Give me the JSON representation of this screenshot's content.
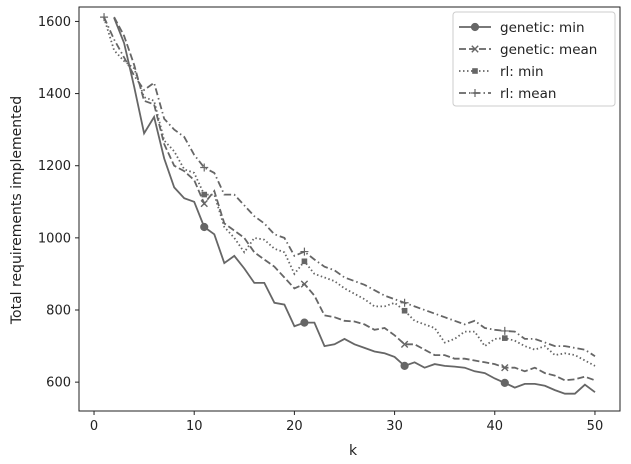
{
  "chart_data": {
    "type": "line",
    "title": "",
    "xlabel": "k",
    "ylabel": "Total requirements implemented",
    "xlim": [
      -1.5,
      52.5
    ],
    "ylim": [
      520,
      1640
    ],
    "xticks": [
      0,
      10,
      20,
      30,
      40,
      50
    ],
    "yticks": [
      600,
      800,
      1000,
      1200,
      1400,
      1600
    ],
    "grid": false,
    "legend_position": "top-right",
    "series": [
      {
        "name": "genetic: min",
        "color": "#666666",
        "dash": "solid",
        "marker": "circle",
        "marker_every": [
          11,
          21,
          31,
          41
        ],
        "points": [
          [
            2,
            1610
          ],
          [
            3,
            1540
          ],
          [
            4,
            1420
          ],
          [
            5,
            1290
          ],
          [
            6,
            1335
          ],
          [
            7,
            1220
          ],
          [
            8,
            1140
          ],
          [
            9,
            1110
          ],
          [
            10,
            1100
          ],
          [
            11,
            1030
          ],
          [
            12,
            1010
          ],
          [
            13,
            930
          ],
          [
            14,
            950
          ],
          [
            15,
            915
          ],
          [
            16,
            875
          ],
          [
            17,
            875
          ],
          [
            18,
            820
          ],
          [
            19,
            815
          ],
          [
            20,
            755
          ],
          [
            21,
            765
          ],
          [
            22,
            765
          ],
          [
            23,
            700
          ],
          [
            24,
            705
          ],
          [
            25,
            720
          ],
          [
            26,
            705
          ],
          [
            27,
            695
          ],
          [
            28,
            685
          ],
          [
            29,
            680
          ],
          [
            30,
            670
          ],
          [
            31,
            645
          ],
          [
            32,
            655
          ],
          [
            33,
            640
          ],
          [
            34,
            650
          ],
          [
            35,
            645
          ],
          [
            36,
            643
          ],
          [
            37,
            640
          ],
          [
            38,
            630
          ],
          [
            39,
            625
          ],
          [
            40,
            610
          ],
          [
            41,
            598
          ],
          [
            42,
            585
          ],
          [
            43,
            595
          ],
          [
            44,
            595
          ],
          [
            45,
            590
          ],
          [
            46,
            578
          ],
          [
            47,
            568
          ],
          [
            48,
            568
          ],
          [
            49,
            593
          ],
          [
            50,
            572
          ]
        ]
      },
      {
        "name": "genetic: mean",
        "color": "#666666",
        "dash": "dashed",
        "marker": "x",
        "marker_every": [
          11,
          21,
          31,
          41
        ],
        "points": [
          [
            2,
            1612
          ],
          [
            3,
            1560
          ],
          [
            4,
            1480
          ],
          [
            5,
            1380
          ],
          [
            6,
            1370
          ],
          [
            7,
            1260
          ],
          [
            8,
            1200
          ],
          [
            9,
            1185
          ],
          [
            10,
            1160
          ],
          [
            11,
            1095
          ],
          [
            12,
            1130
          ],
          [
            13,
            1040
          ],
          [
            14,
            1020
          ],
          [
            15,
            1000
          ],
          [
            16,
            960
          ],
          [
            17,
            940
          ],
          [
            18,
            920
          ],
          [
            19,
            890
          ],
          [
            20,
            860
          ],
          [
            21,
            872
          ],
          [
            22,
            840
          ],
          [
            23,
            785
          ],
          [
            24,
            780
          ],
          [
            25,
            770
          ],
          [
            26,
            768
          ],
          [
            27,
            760
          ],
          [
            28,
            745
          ],
          [
            29,
            750
          ],
          [
            30,
            730
          ],
          [
            31,
            705
          ],
          [
            32,
            705
          ],
          [
            33,
            690
          ],
          [
            34,
            675
          ],
          [
            35,
            675
          ],
          [
            36,
            665
          ],
          [
            37,
            665
          ],
          [
            38,
            660
          ],
          [
            39,
            655
          ],
          [
            40,
            650
          ],
          [
            41,
            640
          ],
          [
            42,
            640
          ],
          [
            43,
            630
          ],
          [
            44,
            640
          ],
          [
            45,
            625
          ],
          [
            46,
            618
          ],
          [
            47,
            605
          ],
          [
            48,
            608
          ],
          [
            49,
            615
          ],
          [
            50,
            605
          ]
        ]
      },
      {
        "name": "rl: min",
        "color": "#666666",
        "dash": "dotted",
        "marker": "square",
        "marker_every": [
          11,
          21,
          31,
          41
        ],
        "points": [
          [
            1,
            1610
          ],
          [
            2,
            1520
          ],
          [
            3,
            1490
          ],
          [
            4,
            1470
          ],
          [
            5,
            1390
          ],
          [
            6,
            1380
          ],
          [
            7,
            1270
          ],
          [
            8,
            1240
          ],
          [
            9,
            1190
          ],
          [
            10,
            1180
          ],
          [
            11,
            1120
          ],
          [
            12,
            1120
          ],
          [
            13,
            1030
          ],
          [
            14,
            1000
          ],
          [
            15,
            960
          ],
          [
            16,
            1000
          ],
          [
            17,
            995
          ],
          [
            18,
            970
          ],
          [
            19,
            960
          ],
          [
            20,
            900
          ],
          [
            21,
            935
          ],
          [
            22,
            900
          ],
          [
            23,
            890
          ],
          [
            24,
            880
          ],
          [
            25,
            860
          ],
          [
            26,
            845
          ],
          [
            27,
            830
          ],
          [
            28,
            810
          ],
          [
            29,
            810
          ],
          [
            30,
            820
          ],
          [
            31,
            798
          ],
          [
            32,
            770
          ],
          [
            33,
            760
          ],
          [
            34,
            750
          ],
          [
            35,
            710
          ],
          [
            36,
            720
          ],
          [
            37,
            740
          ],
          [
            38,
            740
          ],
          [
            39,
            700
          ],
          [
            40,
            720
          ],
          [
            41,
            722
          ],
          [
            42,
            715
          ],
          [
            43,
            700
          ],
          [
            44,
            690
          ],
          [
            45,
            700
          ],
          [
            46,
            675
          ],
          [
            47,
            680
          ],
          [
            48,
            675
          ],
          [
            49,
            660
          ],
          [
            50,
            645
          ]
        ]
      },
      {
        "name": "rl: mean",
        "color": "#666666",
        "dash": "dashdot",
        "marker": "plus",
        "marker_every": [
          1,
          11,
          21,
          31,
          41
        ],
        "points": [
          [
            1,
            1612
          ],
          [
            2,
            1550
          ],
          [
            3,
            1500
          ],
          [
            4,
            1450
          ],
          [
            5,
            1410
          ],
          [
            6,
            1430
          ],
          [
            7,
            1330
          ],
          [
            8,
            1300
          ],
          [
            9,
            1280
          ],
          [
            10,
            1230
          ],
          [
            11,
            1195
          ],
          [
            12,
            1180
          ],
          [
            13,
            1120
          ],
          [
            14,
            1120
          ],
          [
            15,
            1090
          ],
          [
            16,
            1060
          ],
          [
            17,
            1040
          ],
          [
            18,
            1010
          ],
          [
            19,
            1000
          ],
          [
            20,
            950
          ],
          [
            21,
            962
          ],
          [
            22,
            940
          ],
          [
            23,
            920
          ],
          [
            24,
            910
          ],
          [
            25,
            890
          ],
          [
            26,
            880
          ],
          [
            27,
            870
          ],
          [
            28,
            855
          ],
          [
            29,
            840
          ],
          [
            30,
            830
          ],
          [
            31,
            820
          ],
          [
            32,
            810
          ],
          [
            33,
            800
          ],
          [
            34,
            790
          ],
          [
            35,
            780
          ],
          [
            36,
            770
          ],
          [
            37,
            760
          ],
          [
            38,
            770
          ],
          [
            39,
            750
          ],
          [
            40,
            745
          ],
          [
            41,
            742
          ],
          [
            42,
            740
          ],
          [
            43,
            720
          ],
          [
            44,
            720
          ],
          [
            45,
            710
          ],
          [
            46,
            700
          ],
          [
            47,
            700
          ],
          [
            48,
            695
          ],
          [
            49,
            690
          ],
          [
            50,
            672
          ]
        ]
      }
    ]
  }
}
